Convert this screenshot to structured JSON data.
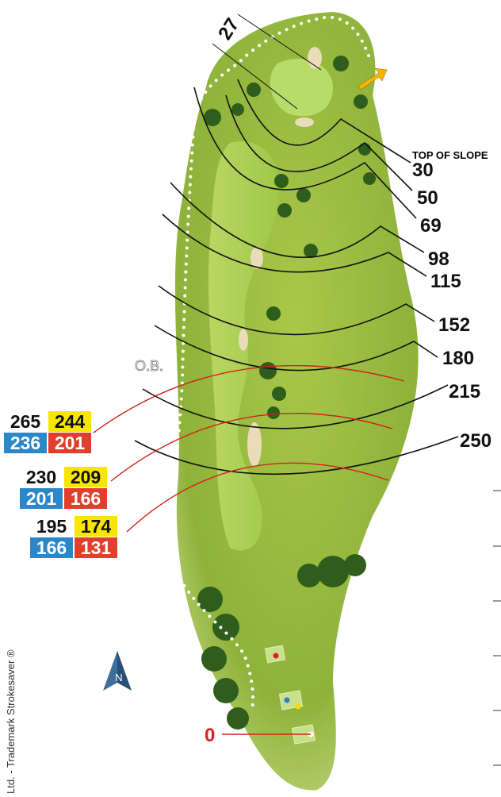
{
  "labels": {
    "green_depth": "27",
    "top_of_slope": "TOP OF SLOPE",
    "ob": "O.B.",
    "tee": 0,
    "north": "N",
    "copyright": "Ltd. - Trademark Strokesaver ®"
  },
  "distances": [
    30,
    50,
    69,
    98,
    115,
    152,
    180,
    215,
    250
  ],
  "tee_boxes": [
    {
      "black": 265,
      "yellow": 244,
      "blue": 236,
      "red": 201
    },
    {
      "black": 230,
      "yellow": 209,
      "blue": 201,
      "red": 166
    },
    {
      "black": 195,
      "yellow": 174,
      "blue": 166,
      "red": 131
    }
  ]
}
